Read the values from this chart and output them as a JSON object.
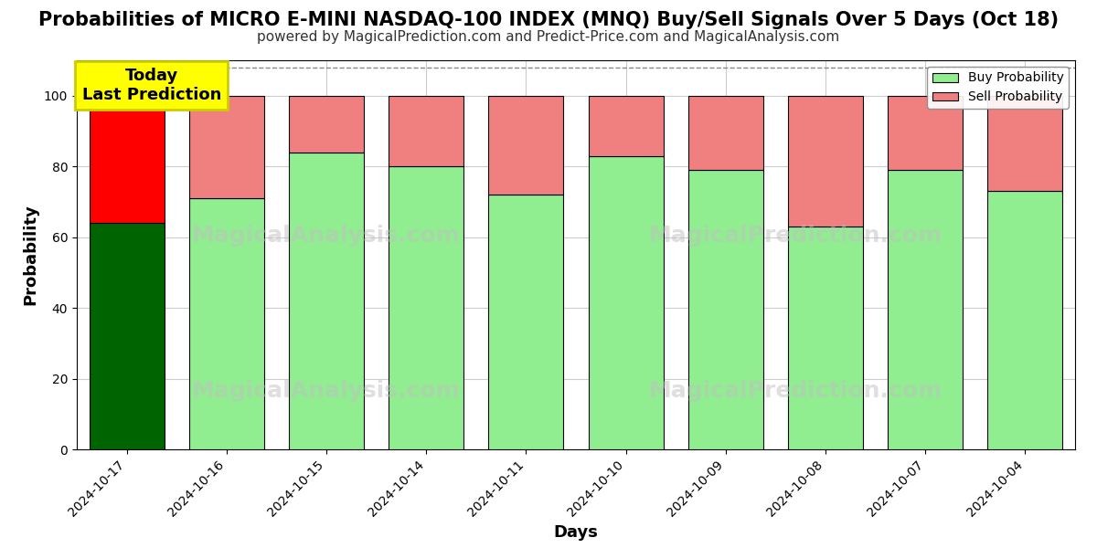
{
  "title": "Probabilities of MICRO E-MINI NASDAQ-100 INDEX (MNQ) Buy/Sell Signals Over 5 Days (Oct 18)",
  "subtitle": "powered by MagicalPrediction.com and Predict-Price.com and MagicalAnalysis.com",
  "xlabel": "Days",
  "ylabel": "Probability",
  "dates": [
    "2024-10-17",
    "2024-10-16",
    "2024-10-15",
    "2024-10-14",
    "2024-10-11",
    "2024-10-10",
    "2024-10-09",
    "2024-10-08",
    "2024-10-07",
    "2024-10-04"
  ],
  "buy_values": [
    64,
    71,
    84,
    80,
    72,
    83,
    79,
    63,
    79,
    73
  ],
  "sell_values": [
    36,
    29,
    16,
    20,
    28,
    17,
    21,
    37,
    21,
    27
  ],
  "today_bar_buy_color": "#006400",
  "today_bar_sell_color": "#FF0000",
  "other_bar_buy_color": "#90EE90",
  "other_bar_sell_color": "#F08080",
  "bar_edge_color": "#000000",
  "ylim": [
    0,
    110
  ],
  "yticks": [
    0,
    20,
    40,
    60,
    80,
    100
  ],
  "dashed_line_y": 108,
  "dashed_line_color": "#888888",
  "grid_color": "#cccccc",
  "background_color": "#ffffff",
  "today_label_text": "Today\nLast Prediction",
  "today_label_bg": "#FFFF00",
  "legend_buy_label": "Buy Probability",
  "legend_sell_label": "Sell Probability",
  "title_fontsize": 15,
  "subtitle_fontsize": 11,
  "axis_label_fontsize": 13,
  "tick_fontsize": 10
}
